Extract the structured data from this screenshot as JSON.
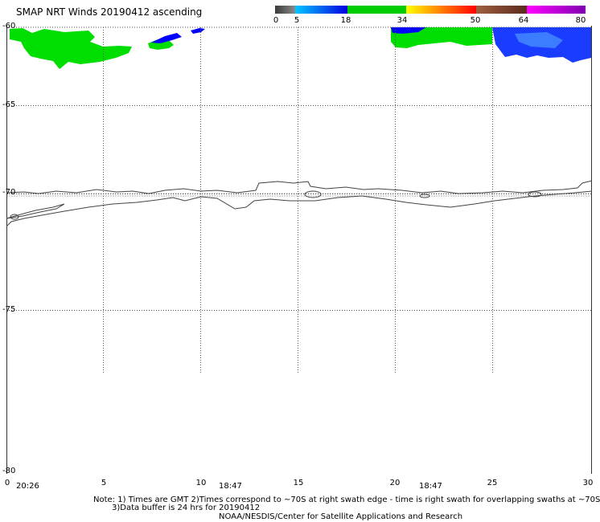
{
  "title": "SMAP NRT Winds 20190412 ascending",
  "colorbar": {
    "labels": [
      "0",
      "5",
      "18",
      "34",
      "50",
      "64",
      "80"
    ],
    "segments": [
      {
        "from": 0,
        "to": 5,
        "colors": [
          "#3a3a3a",
          "#8a8a8a"
        ]
      },
      {
        "from": 5,
        "to": 18,
        "colors": [
          "#00c8ff",
          "#0000e0"
        ]
      },
      {
        "from": 18,
        "to": 34,
        "colors": [
          "#00cc00",
          "#00cc00"
        ]
      },
      {
        "from": 34,
        "to": 50,
        "colors": [
          "#ffff00",
          "#ff7f00",
          "#ff0000"
        ]
      },
      {
        "from": 50,
        "to": 64,
        "colors": [
          "#a06040",
          "#5a2a1a"
        ]
      },
      {
        "from": 64,
        "to": 80,
        "colors": [
          "#ff00ff",
          "#8000b0"
        ]
      }
    ]
  },
  "axes": {
    "lat_labels": [
      "-60",
      "-65",
      "-70",
      "-75",
      "-80"
    ],
    "lon_labels": [
      "0",
      "5",
      "10",
      "15",
      "20",
      "25",
      "30"
    ],
    "times": [
      "20:26",
      "18:47",
      "18:47"
    ]
  },
  "colors": {
    "green": "#00dd00",
    "blue": "#0000ff",
    "coast": "#444444",
    "grid": "#555555"
  },
  "note": {
    "line1": "Note: 1) Times are GMT 2)Times correspond to ~70S at right swath edge - time is right swath for overlapping swaths at ~70S",
    "line2": "3)Data buffer is 24 hrs for 20190412",
    "line3": "NOAA/NESDIS/Center for Satellite Applications and Research"
  }
}
